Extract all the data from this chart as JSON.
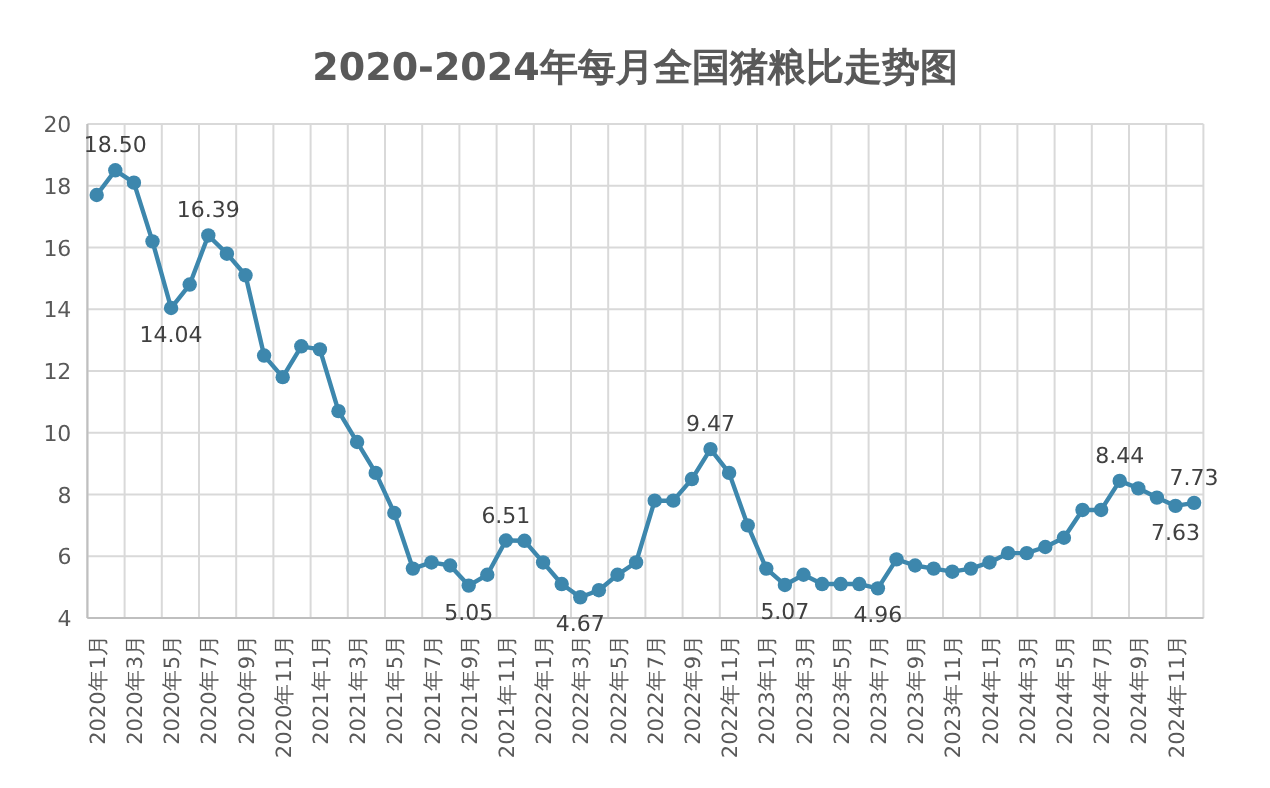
{
  "chart_data": {
    "type": "line",
    "title": "2020-2024年每月全国猪粮比走势图",
    "categories": [
      "2020年1月",
      null,
      "2020年3月",
      null,
      "2020年5月",
      null,
      "2020年7月",
      null,
      "2020年9月",
      null,
      "2020年11月",
      null,
      "2021年1月",
      null,
      "2021年3月",
      null,
      "2021年5月",
      null,
      "2021年7月",
      null,
      "2021年9月",
      null,
      "2021年11月",
      null,
      "2022年1月",
      null,
      "2022年3月",
      null,
      "2022年5月",
      null,
      "2022年7月",
      null,
      "2022年9月",
      null,
      "2022年11月",
      null,
      "2023年1月",
      null,
      "2023年3月",
      null,
      "2023年5月",
      null,
      "2023年7月",
      null,
      "2023年9月",
      null,
      "2023年11月",
      null,
      "2024年1月",
      null,
      "2024年3月",
      null,
      "2024年5月",
      null,
      "2024年7月",
      null,
      "2024年9月",
      null,
      "2024年11月",
      null
    ],
    "series": [
      {
        "color": "#3d87ad",
        "values": [
          17.7,
          18.5,
          18.1,
          16.2,
          14.04,
          14.8,
          16.39,
          15.8,
          15.1,
          12.5,
          11.8,
          12.8,
          12.7,
          10.7,
          9.7,
          8.7,
          7.4,
          5.6,
          5.8,
          5.7,
          5.05,
          5.4,
          6.51,
          6.5,
          5.8,
          5.1,
          4.67,
          4.9,
          5.4,
          5.8,
          7.8,
          7.8,
          8.5,
          9.47,
          8.7,
          7.0,
          5.6,
          5.07,
          5.4,
          5.1,
          5.1,
          5.1,
          4.96,
          5.9,
          5.7,
          5.6,
          5.5,
          5.6,
          5.8,
          6.1,
          6.1,
          6.3,
          6.6,
          7.5,
          7.5,
          8.44,
          8.2,
          7.9,
          7.63,
          7.73
        ],
        "value_labels": [
          null,
          "18.50",
          null,
          null,
          "14.04",
          null,
          "16.39",
          null,
          null,
          null,
          null,
          null,
          null,
          null,
          null,
          null,
          null,
          null,
          null,
          null,
          "5.05",
          null,
          "6.51",
          null,
          null,
          null,
          "4.67",
          null,
          null,
          null,
          null,
          null,
          null,
          "9.47",
          null,
          null,
          null,
          "5.07",
          null,
          null,
          null,
          null,
          "4.96",
          null,
          null,
          null,
          null,
          null,
          null,
          null,
          null,
          null,
          null,
          null,
          null,
          "8.44",
          null,
          null,
          "7.63",
          "7.73"
        ]
      }
    ],
    "ylim": [
      4,
      20
    ],
    "yticks": [
      4,
      6,
      8,
      10,
      12,
      14,
      16,
      18,
      20
    ],
    "grid": true,
    "marker": "circle",
    "line_style": "solid"
  }
}
